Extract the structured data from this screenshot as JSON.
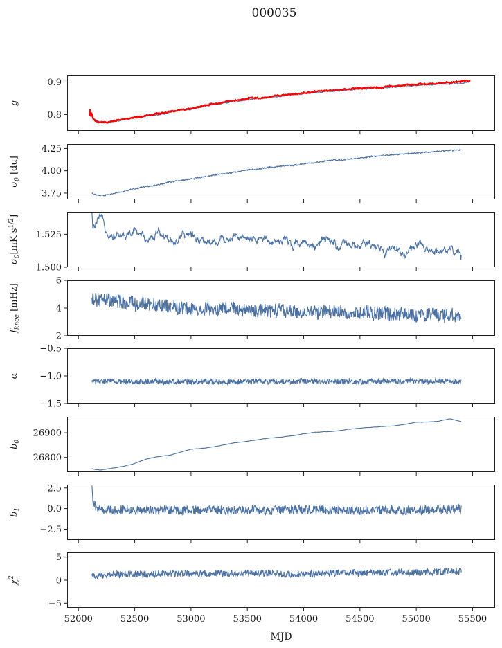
{
  "title": "000035",
  "xlabel": "MJD",
  "colors": {
    "series": "#4c72a4",
    "overlay": "#ff0000"
  },
  "chart_data": [
    {
      "type": "line",
      "ylabel": "g",
      "ylim": [
        0.75,
        0.92
      ],
      "yticks": [
        0.8,
        0.9
      ],
      "ytick_labels": [
        "0.8",
        "0.9"
      ],
      "xlim": [
        51900,
        55700
      ],
      "noise": 0.001,
      "smooth": 0.001,
      "series": [
        {
          "color": "#4c72a4",
          "x": [
            52120,
            52150,
            52180,
            52220,
            52260,
            52300,
            52400,
            52500,
            52600,
            52700,
            52800,
            52900,
            53000,
            53100,
            53200,
            53300,
            53400,
            53500,
            53600,
            53700,
            53800,
            53900,
            54000,
            54100,
            54200,
            54300,
            54400,
            54500,
            54600,
            54700,
            54800,
            54900,
            55000,
            55100,
            55200,
            55300,
            55400,
            55480
          ],
          "y": [
            0.793,
            0.784,
            0.778,
            0.776,
            0.776,
            0.778,
            0.783,
            0.789,
            0.794,
            0.8,
            0.806,
            0.812,
            0.818,
            0.824,
            0.83,
            0.836,
            0.841,
            0.846,
            0.849,
            0.853,
            0.857,
            0.861,
            0.864,
            0.868,
            0.871,
            0.874,
            0.876,
            0.879,
            0.881,
            0.883,
            0.885,
            0.888,
            0.89,
            0.892,
            0.893,
            0.895,
            0.896,
            0.9
          ]
        },
        {
          "color": "#ff0000",
          "x": [
            52100,
            52105,
            52110,
            52115,
            52130,
            52150,
            52180,
            52220,
            52260,
            52300,
            52400,
            52500,
            52600,
            52700,
            52800,
            52900,
            53000,
            53100,
            53200,
            53300,
            53400,
            53500,
            53600,
            53700,
            53800,
            53900,
            54000,
            54100,
            54200,
            54300,
            54400,
            54500,
            54600,
            54700,
            54800,
            54900,
            55000,
            55100,
            55200,
            55300,
            55400,
            55480
          ],
          "y": [
            0.795,
            0.822,
            0.79,
            0.805,
            0.786,
            0.781,
            0.777,
            0.776,
            0.777,
            0.779,
            0.785,
            0.791,
            0.796,
            0.802,
            0.808,
            0.814,
            0.82,
            0.826,
            0.832,
            0.838,
            0.843,
            0.848,
            0.851,
            0.855,
            0.859,
            0.863,
            0.866,
            0.87,
            0.873,
            0.876,
            0.878,
            0.881,
            0.883,
            0.885,
            0.887,
            0.89,
            0.892,
            0.894,
            0.896,
            0.898,
            0.901,
            0.903
          ]
        }
      ]
    },
    {
      "type": "line",
      "ylabel": "σ0 [du]",
      "ylim": [
        3.68,
        4.3
      ],
      "yticks": [
        3.75,
        4.0,
        4.25
      ],
      "ytick_labels": [
        "3.75",
        "4.00",
        "4.25"
      ],
      "xlim": [
        51900,
        55700
      ],
      "noise": 0.006,
      "smooth": 0.002,
      "series": [
        {
          "color": "#4c72a4",
          "x": [
            52120,
            52150,
            52200,
            52300,
            52400,
            52500,
            52600,
            52700,
            52800,
            52900,
            53000,
            53100,
            53200,
            53300,
            53400,
            53500,
            53600,
            53700,
            53800,
            53900,
            54000,
            54100,
            54200,
            54300,
            54400,
            54500,
            54600,
            54700,
            54800,
            54900,
            55000,
            55100,
            55200,
            55300,
            55400
          ],
          "y": [
            3.75,
            3.73,
            3.72,
            3.74,
            3.77,
            3.8,
            3.82,
            3.84,
            3.87,
            3.89,
            3.91,
            3.93,
            3.95,
            3.97,
            3.99,
            4.01,
            4.02,
            4.04,
            4.05,
            4.06,
            4.08,
            4.09,
            4.11,
            4.12,
            4.13,
            4.14,
            4.16,
            4.17,
            4.18,
            4.19,
            4.2,
            4.21,
            4.22,
            4.23,
            4.23
          ]
        }
      ]
    },
    {
      "type": "line",
      "ylabel": "σ0[mK s^1/2]",
      "ylim": [
        1.5,
        1.542
      ],
      "yticks": [
        1.5,
        1.525
      ],
      "ytick_labels": [
        "1.500",
        "1.525"
      ],
      "xlim": [
        51900,
        55700
      ],
      "noise": 0.0012,
      "smooth": 0.002,
      "series": [
        {
          "color": "#4c72a4",
          "x": [
            52120,
            52130,
            52160,
            52200,
            52250,
            52300,
            52400,
            52500,
            52600,
            52700,
            52800,
            52900,
            53000,
            53100,
            53200,
            53300,
            53400,
            53500,
            53600,
            53700,
            53800,
            53900,
            54000,
            54100,
            54200,
            54300,
            54400,
            54500,
            54600,
            54700,
            54800,
            54900,
            55000,
            55100,
            55200,
            55300,
            55400
          ],
          "y": [
            1.54,
            1.527,
            1.533,
            1.535,
            1.529,
            1.526,
            1.524,
            1.526,
            1.522,
            1.527,
            1.521,
            1.52,
            1.525,
            1.522,
            1.519,
            1.522,
            1.525,
            1.519,
            1.52,
            1.522,
            1.521,
            1.518,
            1.521,
            1.516,
            1.519,
            1.517,
            1.514,
            1.516,
            1.516,
            1.512,
            1.515,
            1.511,
            1.517,
            1.51,
            1.513,
            1.516,
            1.507
          ]
        }
      ]
    },
    {
      "type": "line",
      "ylabel": "f_knee [mHz]",
      "ylim": [
        2,
        6
      ],
      "yticks": [
        2,
        4,
        6
      ],
      "ytick_labels": [
        "2",
        "4",
        "6"
      ],
      "xlim": [
        51900,
        55700
      ],
      "noise": 0.5,
      "smooth": 0.05,
      "series": [
        {
          "color": "#4c72a4",
          "x": [
            52120,
            52200,
            52300,
            52400,
            52500,
            52600,
            52700,
            52800,
            52900,
            53000,
            53200,
            53400,
            53600,
            53800,
            54000,
            54200,
            54400,
            54600,
            54800,
            55000,
            55200,
            55400
          ],
          "y": [
            4.6,
            4.6,
            4.5,
            4.4,
            4.3,
            4.3,
            4.2,
            4.1,
            4.0,
            4.0,
            3.9,
            3.9,
            3.8,
            3.8,
            3.7,
            3.7,
            3.7,
            3.6,
            3.6,
            3.5,
            3.5,
            3.4
          ]
        }
      ]
    },
    {
      "type": "line",
      "ylabel": "α",
      "ylim": [
        -1.5,
        -0.5
      ],
      "yticks": [
        -1.5,
        -1.0,
        -0.5
      ],
      "ytick_labels": [
        "−1.5",
        "−1.0",
        "−0.5"
      ],
      "xlim": [
        51900,
        55700
      ],
      "noise": 0.05,
      "smooth": 0.005,
      "series": [
        {
          "color": "#4c72a4",
          "x": [
            52120,
            53000,
            54000,
            55000,
            55400
          ],
          "y": [
            -1.1,
            -1.1,
            -1.1,
            -1.1,
            -1.1
          ]
        }
      ]
    },
    {
      "type": "line",
      "ylabel": "b0",
      "ylim": [
        26740,
        26965
      ],
      "yticks": [
        26800,
        26900
      ],
      "ytick_labels": [
        "26800",
        "26900"
      ],
      "xlim": [
        51900,
        55700
      ],
      "noise": 0.4,
      "smooth": 0.3,
      "series": [
        {
          "color": "#4c72a4",
          "x": [
            52120,
            52150,
            52200,
            52300,
            52400,
            52500,
            52600,
            52700,
            52800,
            52900,
            53000,
            53100,
            53200,
            53300,
            53400,
            53500,
            53600,
            53700,
            53800,
            53900,
            54000,
            54100,
            54200,
            54300,
            54400,
            54500,
            54600,
            54700,
            54800,
            54900,
            55000,
            55100,
            55200,
            55300,
            55400
          ],
          "y": [
            26754,
            26750,
            26749,
            26756,
            26764,
            26775,
            26793,
            26803,
            26808,
            26820,
            26833,
            26837,
            26843,
            26852,
            26860,
            26865,
            26872,
            26879,
            26882,
            26888,
            26895,
            26902,
            26904,
            26908,
            26914,
            26919,
            26922,
            26925,
            26928,
            26934,
            26943,
            26944,
            26947,
            26957,
            26946
          ]
        }
      ]
    },
    {
      "type": "line",
      "ylabel": "b1",
      "ylim": [
        -3.8,
        2.9
      ],
      "yticks": [
        -2.5,
        0.0,
        2.5
      ],
      "ytick_labels": [
        "−2.5",
        "0.0",
        "2.5"
      ],
      "xlim": [
        51900,
        55700
      ],
      "noise": 0.55,
      "smooth": 0.05,
      "series": [
        {
          "color": "#4c72a4",
          "x": [
            52120,
            52130,
            52160,
            52200,
            52300,
            53000,
            54000,
            54500,
            55000,
            55400
          ],
          "y": [
            2.2,
            0.6,
            0.1,
            -0.2,
            -0.2,
            -0.2,
            -0.15,
            -0.2,
            -0.2,
            -0.1
          ]
        }
      ]
    },
    {
      "type": "line",
      "ylabel": "χ²",
      "ylim": [
        -6,
        6
      ],
      "yticks": [
        -5,
        0,
        5
      ],
      "ytick_labels": [
        "−5",
        "0",
        "5"
      ],
      "xlim": [
        51900,
        55700
      ],
      "noise": 0.75,
      "smooth": 0.05,
      "series": [
        {
          "color": "#4c72a4",
          "x": [
            52120,
            52300,
            52600,
            53000,
            53500,
            54000,
            54500,
            55000,
            55400
          ],
          "y": [
            0.8,
            1.2,
            1.3,
            1.4,
            1.5,
            1.3,
            1.6,
            1.7,
            1.9
          ]
        }
      ]
    }
  ],
  "xticks": [
    52000,
    52500,
    53000,
    53500,
    54000,
    54500,
    55000,
    55500
  ],
  "xtick_labels": [
    "52000",
    "52500",
    "53000",
    "53500",
    "54000",
    "54500",
    "55000",
    "55500"
  ]
}
